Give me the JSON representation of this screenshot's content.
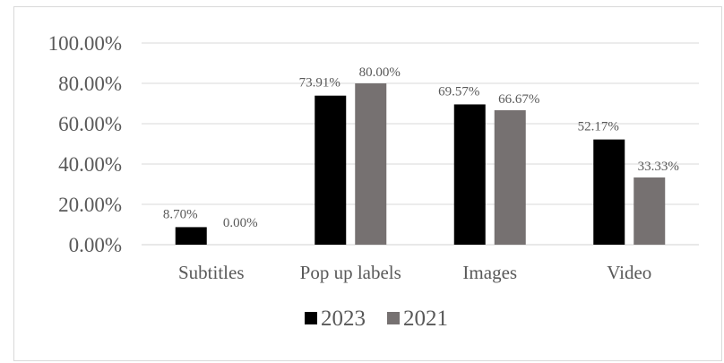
{
  "chart_data": {
    "type": "bar",
    "categories": [
      "Subtitles",
      "Pop up labels",
      "Images",
      "Video"
    ],
    "series": [
      {
        "name": "2023",
        "values": [
          8.7,
          73.91,
          69.57,
          52.17
        ],
        "labels": [
          "8.70%",
          "73.91%",
          "69.57%",
          "52.17%"
        ],
        "color": "#000000"
      },
      {
        "name": "2021",
        "values": [
          0.0,
          80.0,
          66.67,
          33.33
        ],
        "labels": [
          "0.00%",
          "80.00%",
          "66.67%",
          "33.33%"
        ],
        "color": "#767171"
      }
    ],
    "yticks": [
      "0.00%",
      "20.00%",
      "40.00%",
      "60.00%",
      "80.00%",
      "100.00%"
    ],
    "ylim": [
      0,
      100
    ],
    "grid": true,
    "legend_position": "bottom"
  }
}
